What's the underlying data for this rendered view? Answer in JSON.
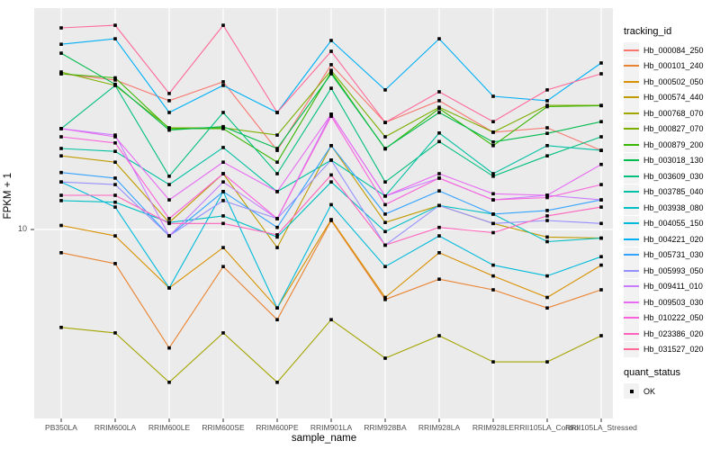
{
  "figure": {
    "panel_bg": "#EBEBEB",
    "grid_color": "#FFFFFF",
    "axis_text_color": "#4D4D4D",
    "y_axis_title": "FPKM + 1",
    "x_axis_title": "sample_name",
    "y_tick_label": "10"
  },
  "legend": {
    "tracking_title": "tracking_id",
    "quant_title": "quant_status",
    "quant_item_label": "OK",
    "quant_marker": "filled-black-square"
  },
  "chart_data": {
    "type": "line",
    "title": "",
    "xlabel": "sample_name",
    "ylabel": "FPKM + 1",
    "y_scale": "log10",
    "y_ticks": [
      10
    ],
    "ylim": [
      1.6,
      85
    ],
    "grid": true,
    "legend_position": "right",
    "point_marker": "black-square",
    "categories": [
      "PB350LA",
      "RRIM600LA",
      "RRIM600LE",
      "RRIM600SE",
      "RRIM600PE",
      "RRIM901LA",
      "RRIM928BA",
      "RRIM928LA",
      "RRIM928LE",
      "RRII105LA_Control",
      "RRII105LA_Stressed"
    ],
    "series": [
      {
        "name": "Hb_000084_250",
        "color": "#F8766D",
        "values": [
          44.7,
          42.1,
          34.5,
          41.4,
          21.4,
          48.8,
          28.0,
          34.5,
          25.5,
          26.6,
          21.4
        ]
      },
      {
        "name": "Hb_000101_240",
        "color": "#EA8331",
        "values": [
          8.0,
          7.2,
          3.2,
          7.0,
          4.2,
          10.9,
          5.1,
          6.2,
          5.6,
          4.7,
          5.6
        ]
      },
      {
        "name": "Hb_000502_050",
        "color": "#D89000",
        "values": [
          10.4,
          9.4,
          5.7,
          8.4,
          4.7,
          11.0,
          5.2,
          8.0,
          6.4,
          5.2,
          7.1
        ]
      },
      {
        "name": "Hb_000574_440",
        "color": "#C09B00",
        "values": [
          20.3,
          19.1,
          10.7,
          17.1,
          8.4,
          22.4,
          10.7,
          12.6,
          10.6,
          9.3,
          9.2
        ]
      },
      {
        "name": "Hb_000768_070",
        "color": "#A3A500",
        "values": [
          3.9,
          3.7,
          2.3,
          3.7,
          2.3,
          4.2,
          2.9,
          3.6,
          2.8,
          2.8,
          3.6
        ]
      },
      {
        "name": "Hb_000827_070",
        "color": "#7CAE00",
        "values": [
          45.5,
          40.0,
          26.6,
          26.6,
          24.8,
          46.2,
          24.4,
          32.4,
          25.5,
          33.0,
          33.0
        ]
      },
      {
        "name": "Hb_000879_200",
        "color": "#39B600",
        "values": [
          44.7,
          43.0,
          26.4,
          26.4,
          19.1,
          45.5,
          21.7,
          32.0,
          22.4,
          32.6,
          32.9
        ]
      },
      {
        "name": "Hb_003018_130",
        "color": "#00BB4E",
        "values": [
          54.5,
          40.4,
          26.0,
          26.9,
          21.8,
          44.7,
          21.8,
          30.8,
          23.2,
          25.2,
          28.2
        ]
      },
      {
        "name": "Hb_003609_030",
        "color": "#00BF7D",
        "values": [
          26.4,
          40.0,
          16.7,
          30.8,
          17.1,
          38.9,
          15.8,
          23.3,
          16.7,
          20.3,
          24.4
        ]
      },
      {
        "name": "Hb_003785_040",
        "color": "#00C1A3",
        "values": [
          21.8,
          21.2,
          15.4,
          22.0,
          14.4,
          19.5,
          13.8,
          25.3,
          17.1,
          22.4,
          21.4
        ]
      },
      {
        "name": "Hb_003938_080",
        "color": "#00BFC4",
        "values": [
          13.2,
          13.0,
          10.7,
          11.4,
          9.3,
          15.8,
          9.8,
          12.6,
          11.6,
          8.9,
          9.2
        ]
      },
      {
        "name": "Hb_004055_150",
        "color": "#00BBDA",
        "values": [
          15.8,
          12.4,
          5.7,
          14.4,
          4.7,
          12.7,
          7.0,
          9.4,
          7.1,
          6.4,
          7.7
        ]
      },
      {
        "name": "Hb_004221_020",
        "color": "#00B0F6",
        "values": [
          59.4,
          62.6,
          30.8,
          40.0,
          30.8,
          61.6,
          38.3,
          62.6,
          36.0,
          34.5,
          49.6
        ]
      },
      {
        "name": "Hb_005731_030",
        "color": "#35A2FF",
        "values": [
          17.3,
          16.4,
          9.4,
          14.4,
          10.2,
          22.4,
          11.6,
          14.5,
          11.6,
          12.0,
          13.3
        ]
      },
      {
        "name": "Hb_005993_050",
        "color": "#9590FF",
        "values": [
          15.8,
          15.4,
          9.4,
          13.2,
          11.1,
          19.5,
          8.6,
          12.6,
          10.6,
          10.9,
          10.6
        ]
      },
      {
        "name": "Hb_009411_010",
        "color": "#C77CFF",
        "values": [
          26.4,
          24.8,
          9.4,
          15.8,
          11.1,
          30.3,
          13.8,
          16.4,
          13.3,
          13.9,
          13.3
        ]
      },
      {
        "name": "Hb_009503_030",
        "color": "#E76BF3",
        "values": [
          26.4,
          24.4,
          13.3,
          19.1,
          14.4,
          30.3,
          13.8,
          17.1,
          14.1,
          13.9,
          18.7
        ]
      },
      {
        "name": "Hb_010222_050",
        "color": "#FA62DB",
        "values": [
          24.4,
          23.0,
          11.1,
          17.1,
          11.1,
          29.7,
          12.7,
          16.4,
          13.3,
          13.6,
          15.4
        ]
      },
      {
        "name": "Hb_023386_020",
        "color": "#FF62BC",
        "values": [
          13.9,
          13.9,
          10.6,
          10.6,
          9.5,
          16.9,
          8.6,
          10.2,
          9.7,
          11.4,
          12.4
        ]
      },
      {
        "name": "Hb_031527_020",
        "color": "#FF6A98",
        "values": [
          69.5,
          71.3,
          37.0,
          71.3,
          30.8,
          55.5,
          28.0,
          37.6,
          28.2,
          38.3,
          44.7
        ]
      }
    ]
  }
}
